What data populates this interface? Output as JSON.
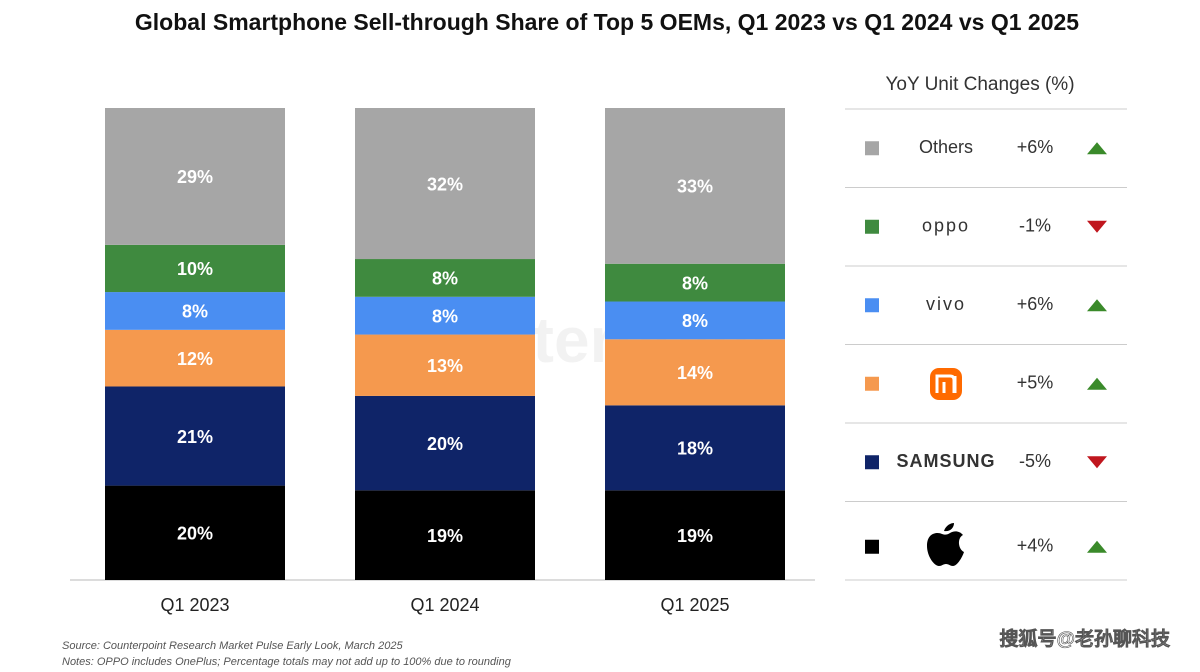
{
  "chart_data": {
    "type": "stacked_bar",
    "title": "Global Smartphone Sell-through Share of Top 5 OEMs, Q1 2023 vs Q1 2024 vs Q1 2025",
    "categories": [
      "Q1 2023",
      "Q1 2024",
      "Q1 2025"
    ],
    "ylim": [
      0,
      100
    ],
    "legend_title": "YoY Unit Changes (%)",
    "series": [
      {
        "color": "#000000",
        "values": [
          20,
          19,
          19
        ],
        "value_labels": [
          "20%",
          "19%",
          "19%"
        ],
        "yoy": {
          "value": 4,
          "label": "+4%"
        }
      },
      {
        "name": "SAMSUNG",
        "color": "#0f2468",
        "values": [
          21,
          20,
          18
        ],
        "value_labels": [
          "21%",
          "20%",
          "18%"
        ],
        "yoy": {
          "value": -5,
          "label": "-5%"
        }
      },
      {
        "color": "#f5994e",
        "values": [
          12,
          13,
          14
        ],
        "value_labels": [
          "12%",
          "13%",
          "14%"
        ],
        "yoy": {
          "value": 5,
          "label": "+5%"
        }
      },
      {
        "name": "vivo",
        "color": "#4a8ef2",
        "values": [
          8,
          8,
          8
        ],
        "value_labels": [
          "8%",
          "8%",
          "8%"
        ],
        "yoy": {
          "value": 6,
          "label": "+6%"
        }
      },
      {
        "name": "oppo",
        "color": "#3f8a3f",
        "values": [
          10,
          8,
          8
        ],
        "value_labels": [
          "10%",
          "8%",
          "8%"
        ],
        "yoy": {
          "value": -1,
          "label": "-1%"
        }
      },
      {
        "name": "Others",
        "color": "#a6a6a6",
        "values": [
          29,
          32,
          33
        ],
        "value_labels": [
          "29%",
          "32%",
          "33%"
        ],
        "yoy": {
          "value": 6,
          "label": "+6%"
        }
      }
    ],
    "watermark": "Counterpoint",
    "source": "Source: Counterpoint Research Market Pulse Early Look, March 2025",
    "notes": "Notes: OPPO includes OnePlus; Percentage totals may not add up to 100% due to rounding",
    "credit": "搜狐号@老孙聊科技"
  }
}
